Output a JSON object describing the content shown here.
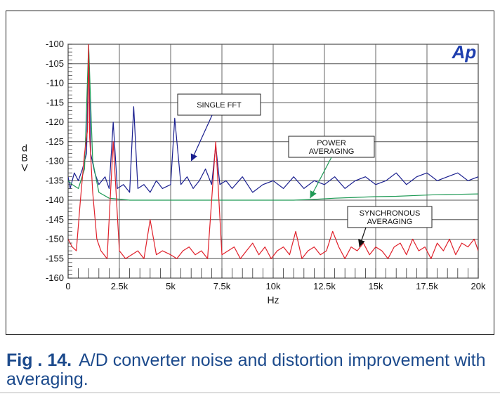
{
  "caption": {
    "label": "Fig . 14.",
    "text": "A/D converter noise and distortion improvement with averaging."
  },
  "logo": {
    "text": "Ap",
    "color": "#1f3fae"
  },
  "chart_data": {
    "type": "line",
    "xlabel": "Hz",
    "ylabel": "dBV",
    "xlim": [
      0,
      20000
    ],
    "ylim": [
      -160,
      -100
    ],
    "xticks": [
      0,
      2500,
      5000,
      7500,
      10000,
      12500,
      15000,
      17500,
      20000
    ],
    "xtick_labels": [
      "0",
      "2.5k",
      "5k",
      "7.5k",
      "10k",
      "12.5k",
      "15k",
      "17.5k",
      "20k"
    ],
    "yticks": [
      -100,
      -105,
      -110,
      -115,
      -120,
      -125,
      -130,
      -135,
      -140,
      -145,
      -150,
      -155,
      -160
    ],
    "ytick_labels": [
      "-100",
      "-105",
      "-110",
      "-115",
      "-120",
      "-125",
      "-130",
      "-135",
      "-140",
      "-145",
      "-150",
      "-155",
      "-160"
    ],
    "grid": true,
    "series": [
      {
        "name": "SINGLE FFT",
        "color": "#1a1f8f",
        "x": [
          0,
          100,
          300,
          500,
          700,
          900,
          1000,
          1100,
          1300,
          1500,
          1800,
          2000,
          2200,
          2400,
          2700,
          3000,
          3200,
          3400,
          3700,
          4000,
          4300,
          4600,
          5000,
          5200,
          5500,
          5800,
          6100,
          6400,
          6700,
          7000,
          7200,
          7400,
          7700,
          8000,
          8500,
          9000,
          9500,
          10000,
          10500,
          11000,
          11500,
          12000,
          12500,
          13000,
          13500,
          14000,
          14500,
          15000,
          15500,
          16000,
          16500,
          17000,
          17500,
          18000,
          18500,
          19000,
          19500,
          20000
        ],
        "y": [
          -134,
          -137,
          -133,
          -135,
          -132,
          -128,
          -100,
          -128,
          -133,
          -136,
          -134,
          -137,
          -120,
          -137,
          -136,
          -138,
          -116,
          -137,
          -136,
          -138,
          -135,
          -137,
          -136,
          -119,
          -136,
          -134,
          -137,
          -135,
          -132,
          -136,
          -126,
          -136,
          -135,
          -137,
          -134,
          -138,
          -136,
          -135,
          -137,
          -134,
          -137,
          -135,
          -136,
          -134,
          -137,
          -135,
          -134,
          -136,
          -135,
          -133,
          -136,
          -134,
          -133,
          -135,
          -134,
          -133,
          -135,
          -134
        ]
      },
      {
        "name": "POWER AVERAGING",
        "color": "#1f9a55",
        "x": [
          0,
          200,
          500,
          800,
          1000,
          1200,
          1500,
          2000,
          3000,
          4000,
          5000,
          6000,
          7000,
          8000,
          9000,
          10000,
          11000,
          12000,
          13000,
          14000,
          15000,
          16000,
          17000,
          18000,
          19000,
          20000
        ],
        "y": [
          -135,
          -136,
          -137,
          -132,
          -100,
          -130,
          -138,
          -139.5,
          -140,
          -140,
          -140,
          -140,
          -140,
          -140,
          -140,
          -140,
          -140,
          -139.8,
          -139.5,
          -139.3,
          -139.1,
          -139,
          -138.8,
          -138.6,
          -138.5,
          -138.4
        ]
      },
      {
        "name": "SYNCHRONOUS AVERAGING",
        "color": "#e0202a",
        "x": [
          0,
          200,
          400,
          600,
          800,
          950,
          1000,
          1050,
          1200,
          1400,
          1600,
          1900,
          2200,
          2500,
          2800,
          3100,
          3400,
          3700,
          4000,
          4300,
          4600,
          5000,
          5300,
          5600,
          5900,
          6200,
          6500,
          6800,
          7200,
          7500,
          7800,
          8100,
          8400,
          8700,
          9000,
          9300,
          9600,
          9900,
          10200,
          10500,
          10800,
          11100,
          11400,
          11700,
          12000,
          12300,
          12600,
          12900,
          13200,
          13500,
          13800,
          14100,
          14400,
          14700,
          15000,
          15300,
          15600,
          15900,
          16200,
          16500,
          16800,
          17100,
          17400,
          17700,
          18000,
          18300,
          18600,
          18900,
          19200,
          19500,
          19800,
          20000
        ],
        "y": [
          -150,
          -152,
          -153,
          -140,
          -128,
          -122,
          -100,
          -124,
          -138,
          -150,
          -153,
          -155,
          -125,
          -153,
          -155,
          -154,
          -153,
          -155,
          -145,
          -154,
          -153,
          -154,
          -155,
          -153,
          -152,
          -154,
          -153,
          -155,
          -125,
          -154,
          -153,
          -152,
          -155,
          -153,
          -151,
          -154,
          -152,
          -155,
          -153,
          -152,
          -154,
          -148,
          -155,
          -153,
          -152,
          -154,
          -153,
          -148,
          -152,
          -155,
          -152,
          -153,
          -151,
          -154,
          -152,
          -153,
          -155,
          -152,
          -151,
          -154,
          -150,
          -153,
          -152,
          -155,
          -151,
          -153,
          -150,
          -154,
          -151,
          -152,
          -150,
          -153
        ]
      }
    ],
    "annotations": [
      {
        "lines": [
          "SINGLE FFT"
        ],
        "target_x": 6000,
        "target_y": -130
      },
      {
        "lines": [
          "POWER",
          "AVERAGING"
        ],
        "target_x": 11800,
        "target_y": -139.5
      },
      {
        "lines": [
          "SYNCHRONOUS",
          "AVERAGING"
        ],
        "target_x": 14200,
        "target_y": -152
      }
    ]
  }
}
